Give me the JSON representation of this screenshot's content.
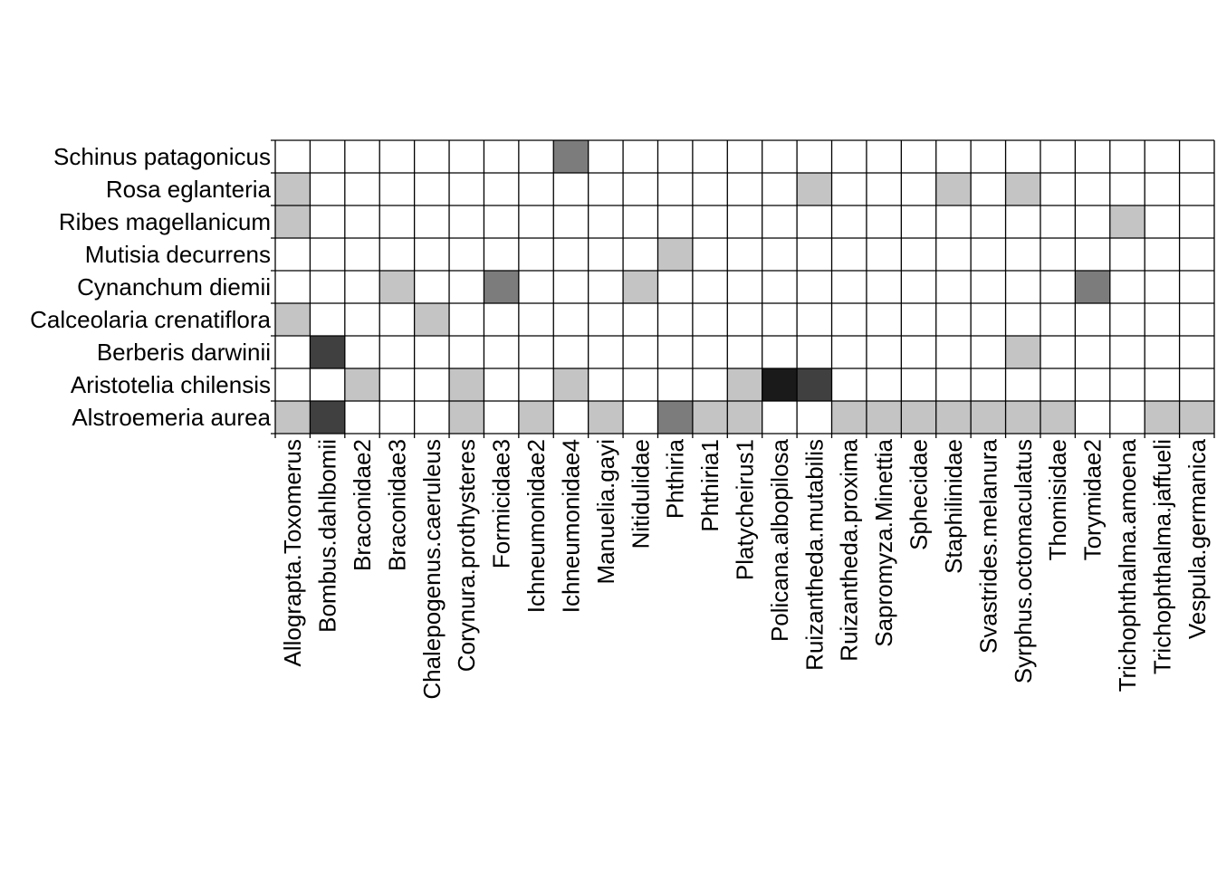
{
  "chart_data": {
    "type": "heatmap",
    "title": "",
    "xlabel": "",
    "ylabel": "",
    "grid": true,
    "legend": "none",
    "value_scale": "interaction intensity shown as grey level (0 = white, 4 = near black)",
    "colors": {
      "0": "#ffffff",
      "1": "#c4c4c4",
      "2": "#7c7c7c",
      "3": "#404040",
      "4": "#1a1a1a",
      "grid": "#000000"
    },
    "x_categories": [
      "Allograpta.Toxomerus",
      "Bombus.dahlbomii",
      "Braconidae2",
      "Braconidae3",
      "Chalepogenus.caeruleus",
      "Corynura.prothysteres",
      "Formicidae3",
      "Ichneumonidae2",
      "Ichneumonidae4",
      "Manuelia.gayi",
      "Nitidulidae",
      "Phthiria",
      "Phthiria1",
      "Platycheirus1",
      "Policana.albopilosa",
      "Ruizantheda.mutabilis",
      "Ruizantheda.proxima",
      "Sapromyza.Minettia",
      "Sphecidae",
      "Staphilinidae",
      "Svastrides.melanura",
      "Syrphus.octomaculatus",
      "Thomisidae",
      "Torymidae2",
      "Trichophthalma.amoena",
      "Trichophthalma.jaffueli",
      "Vespula.germanica"
    ],
    "y_categories": [
      "Schinus patagonicus",
      "Rosa eglanteria",
      "Ribes magellanicum",
      "Mutisia decurrens",
      "Cynanchum diemii",
      "Calceolaria crenatiflora",
      "Berberis darwinii",
      "Aristotelia chilensis",
      "Alstroemeria aurea"
    ],
    "values": [
      [
        0,
        0,
        0,
        0,
        0,
        0,
        0,
        0,
        2,
        0,
        0,
        0,
        0,
        0,
        0,
        0,
        0,
        0,
        0,
        0,
        0,
        0,
        0,
        0,
        0,
        0,
        0
      ],
      [
        1,
        0,
        0,
        0,
        0,
        0,
        0,
        0,
        0,
        0,
        0,
        0,
        0,
        0,
        0,
        1,
        0,
        0,
        0,
        1,
        0,
        1,
        0,
        0,
        0,
        0,
        0
      ],
      [
        1,
        0,
        0,
        0,
        0,
        0,
        0,
        0,
        0,
        0,
        0,
        0,
        0,
        0,
        0,
        0,
        0,
        0,
        0,
        0,
        0,
        0,
        0,
        0,
        1,
        0,
        0
      ],
      [
        0,
        0,
        0,
        0,
        0,
        0,
        0,
        0,
        0,
        0,
        0,
        1,
        0,
        0,
        0,
        0,
        0,
        0,
        0,
        0,
        0,
        0,
        0,
        0,
        0,
        0,
        0
      ],
      [
        0,
        0,
        0,
        1,
        0,
        0,
        2,
        0,
        0,
        0,
        1,
        0,
        0,
        0,
        0,
        0,
        0,
        0,
        0,
        0,
        0,
        0,
        0,
        2,
        0,
        0,
        0
      ],
      [
        1,
        0,
        0,
        0,
        1,
        0,
        0,
        0,
        0,
        0,
        0,
        0,
        0,
        0,
        0,
        0,
        0,
        0,
        0,
        0,
        0,
        0,
        0,
        0,
        0,
        0,
        0
      ],
      [
        0,
        3,
        0,
        0,
        0,
        0,
        0,
        0,
        0,
        0,
        0,
        0,
        0,
        0,
        0,
        0,
        0,
        0,
        0,
        0,
        0,
        1,
        0,
        0,
        0,
        0,
        0
      ],
      [
        0,
        0,
        1,
        0,
        0,
        1,
        0,
        0,
        1,
        0,
        0,
        0,
        0,
        1,
        4,
        3,
        0,
        0,
        0,
        0,
        0,
        0,
        0,
        0,
        0,
        0,
        0
      ],
      [
        1,
        3,
        0,
        0,
        0,
        1,
        0,
        1,
        0,
        1,
        0,
        2,
        1,
        1,
        0,
        0,
        1,
        1,
        1,
        1,
        1,
        1,
        1,
        0,
        0,
        1,
        1
      ]
    ]
  }
}
